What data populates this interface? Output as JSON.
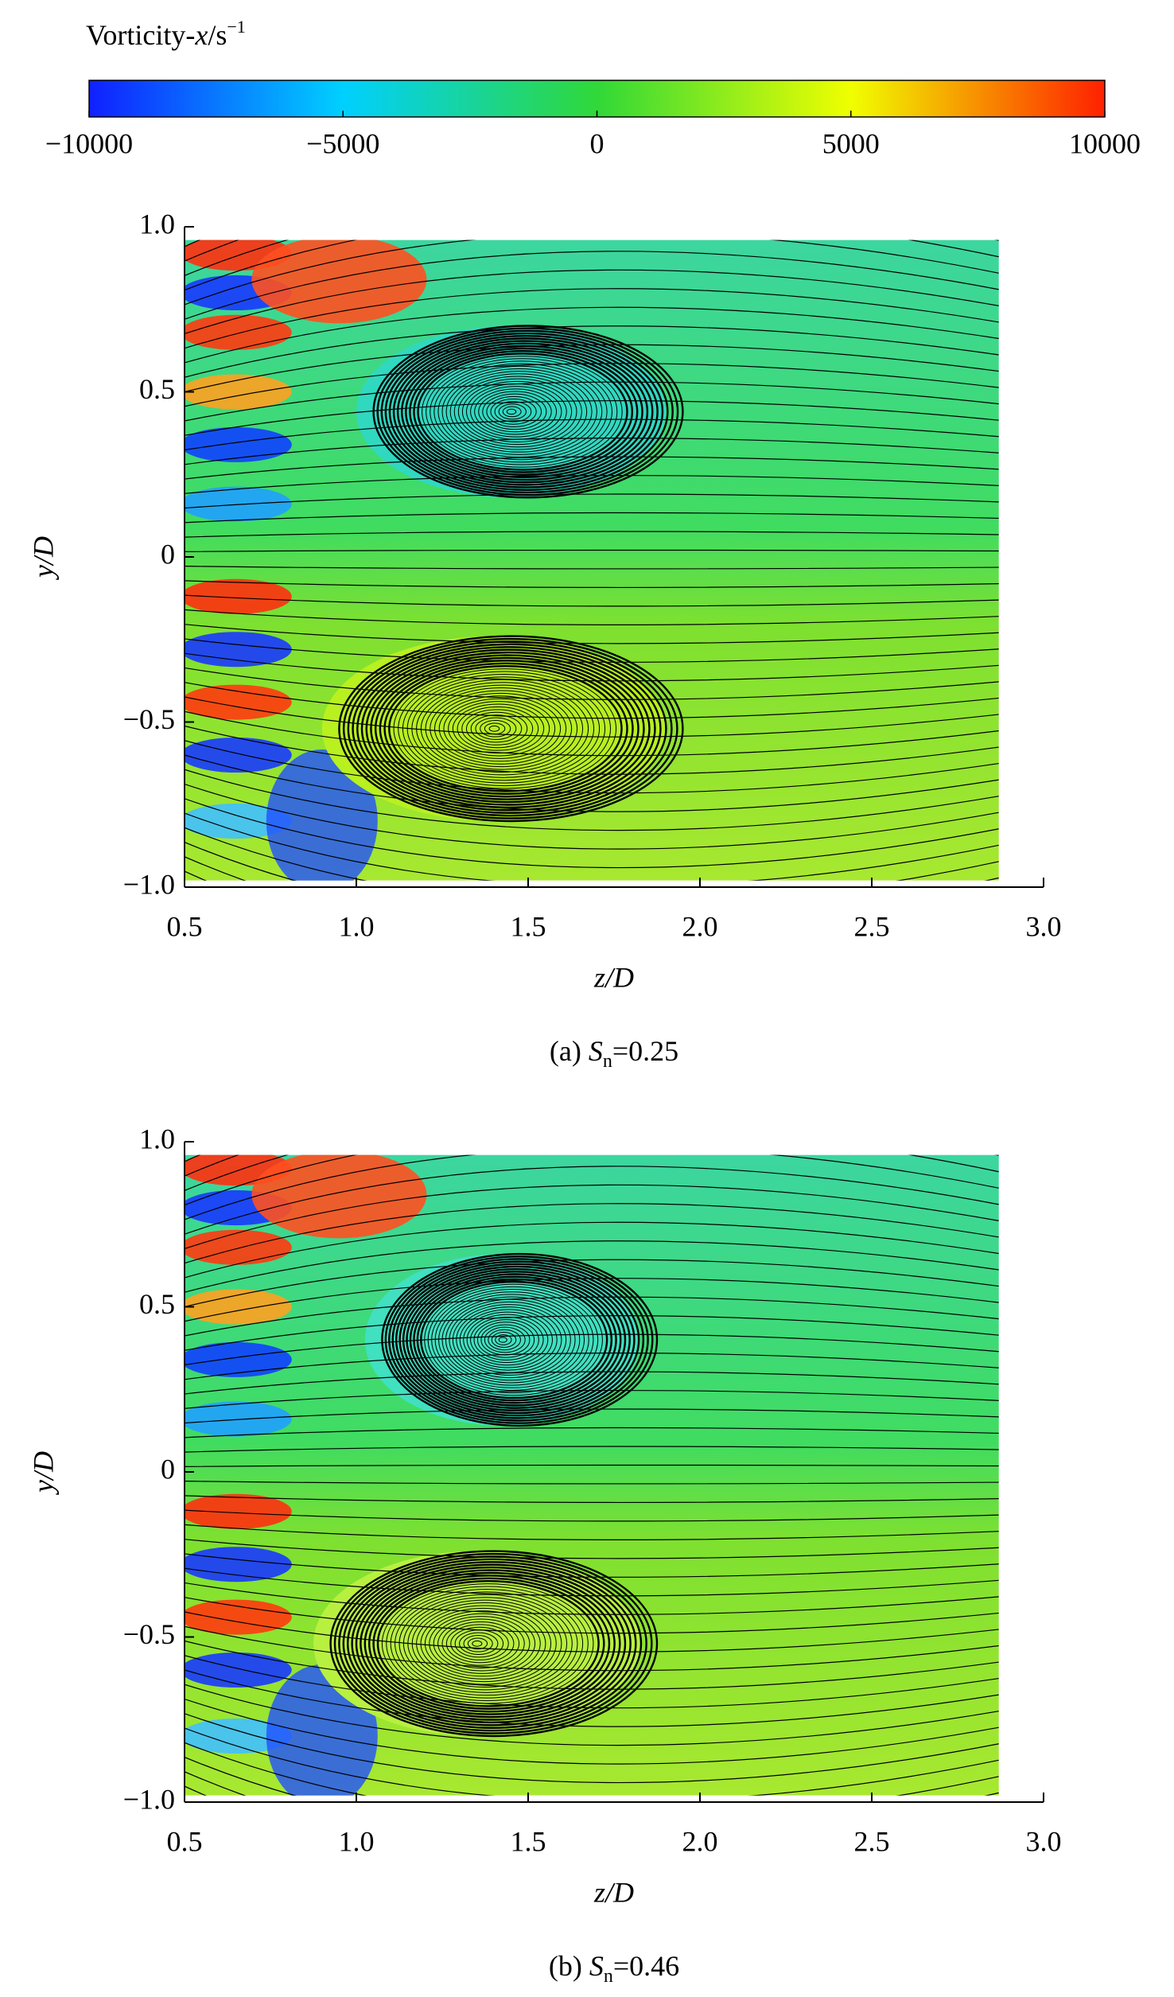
{
  "colorbar": {
    "title": {
      "text": "Vorticity-",
      "variable": "x",
      "unit": "/s",
      "exponent": "−1"
    },
    "lim": [
      -10000,
      10000
    ],
    "ticks": [
      {
        "value": -10000,
        "label": "−10000"
      },
      {
        "value": -5000,
        "label": "−5000"
      },
      0,
      5000,
      10000
    ],
    "colors": [
      "#1020ff",
      "#00d0ff",
      "#30d838",
      "#f0ff00",
      "#ff2000"
    ]
  },
  "chart_data": [
    {
      "type": "streamline",
      "x_label": "z/D",
      "y_label": "y/D",
      "xlim": [
        0.5,
        3.0
      ],
      "ylim": [
        -1.0,
        1.0
      ],
      "xticks": [
        0.5,
        {
          "value": 1.0,
          "label": "1.0"
        },
        1.5,
        {
          "value": 2.0,
          "label": "2.0"
        },
        2.5,
        {
          "value": 3.0,
          "label": "3.0"
        }
      ],
      "yticks": [
        {
          "value": -1.0,
          "label": "−1.0"
        },
        {
          "value": -0.5,
          "label": "−0.5"
        },
        0,
        0.5,
        {
          "value": 1.0,
          "label": "1.0"
        }
      ],
      "caption": {
        "label": "(a)",
        "symbol": "S",
        "subscript": "n",
        "value": "=0.25"
      }
    },
    {
      "type": "streamline",
      "x_label": "z/D",
      "y_label": "y/D",
      "xlim": [
        0.5,
        3.0
      ],
      "ylim": [
        -1.0,
        1.0
      ],
      "xticks": [
        0.5,
        {
          "value": 1.0,
          "label": "1.0"
        },
        1.5,
        {
          "value": 2.0,
          "label": "2.0"
        },
        2.5,
        {
          "value": 3.0,
          "label": "3.0"
        }
      ],
      "yticks": [
        {
          "value": -1.0,
          "label": "−1.0"
        },
        {
          "value": -0.5,
          "label": "−0.5"
        },
        0,
        0.5,
        {
          "value": 1.0,
          "label": "1.0"
        }
      ],
      "caption": {
        "label": "(b)",
        "symbol": "S",
        "subscript": "n",
        "value": "=0.46"
      }
    }
  ]
}
